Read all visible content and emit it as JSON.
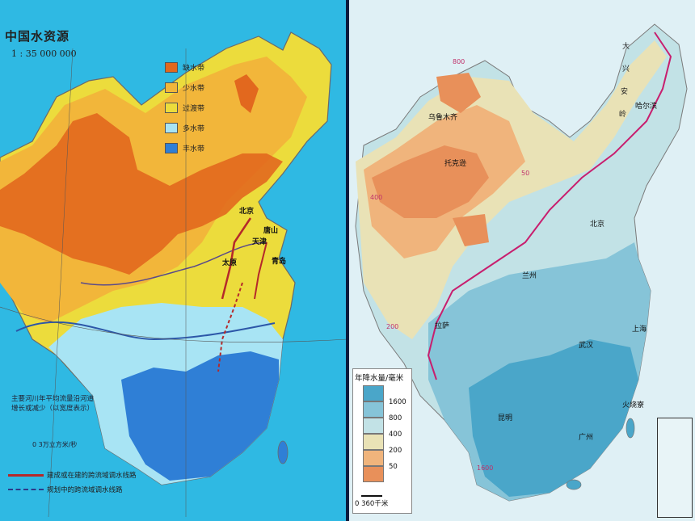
{
  "left_map": {
    "title": "中国水资源",
    "scale": "1 : 35 000 000",
    "legend": [
      {
        "label": "缺水带",
        "color": "#e2681e"
      },
      {
        "label": "少水带",
        "color": "#f2b63a"
      },
      {
        "label": "过渡带",
        "color": "#ecdc3c"
      },
      {
        "label": "多水带",
        "color": "#a8e4f4"
      },
      {
        "label": "丰水带",
        "color": "#2f7fd6"
      }
    ],
    "note": "主要河川年平均流量沿河道增长或减少（以宽度表示）",
    "flow_scale": "0      3万立方米/秒",
    "routes": [
      {
        "label": "建成或在建的跨流域调水线路"
      },
      {
        "label": "规划中的跨流域调水线路"
      }
    ],
    "cities": [
      {
        "name": "北京"
      },
      {
        "name": "天津"
      },
      {
        "name": "太原"
      },
      {
        "name": "唐山"
      },
      {
        "name": "青岛"
      }
    ]
  },
  "right_map": {
    "legend": {
      "title": "年降水量/毫米",
      "bins": [
        {
          "value": "1600",
          "color": "#4aa6c9"
        },
        {
          "value": "800",
          "color": "#86c4d8"
        },
        {
          "value": "400",
          "color": "#c2e2e6"
        },
        {
          "value": "200",
          "color": "#e9e2b6"
        },
        {
          "value": "50",
          "color": "#f0b47c"
        },
        {
          "value": "",
          "color": "#e8905a"
        }
      ],
      "scale": "0    360千米"
    },
    "cities": [
      {
        "name": "乌鲁木齐"
      },
      {
        "name": "托克逊"
      },
      {
        "name": "哈尔滨"
      },
      {
        "name": "北京"
      },
      {
        "name": "兰州"
      },
      {
        "name": "拉萨"
      },
      {
        "name": "上海"
      },
      {
        "name": "武汉"
      },
      {
        "name": "昆明"
      },
      {
        "name": "广州"
      },
      {
        "name": "火烧寮"
      }
    ],
    "region_labels": [
      "大",
      "兴",
      "安",
      "岭"
    ],
    "contour_labels": [
      "800",
      "400",
      "200",
      "50",
      "1600"
    ]
  }
}
